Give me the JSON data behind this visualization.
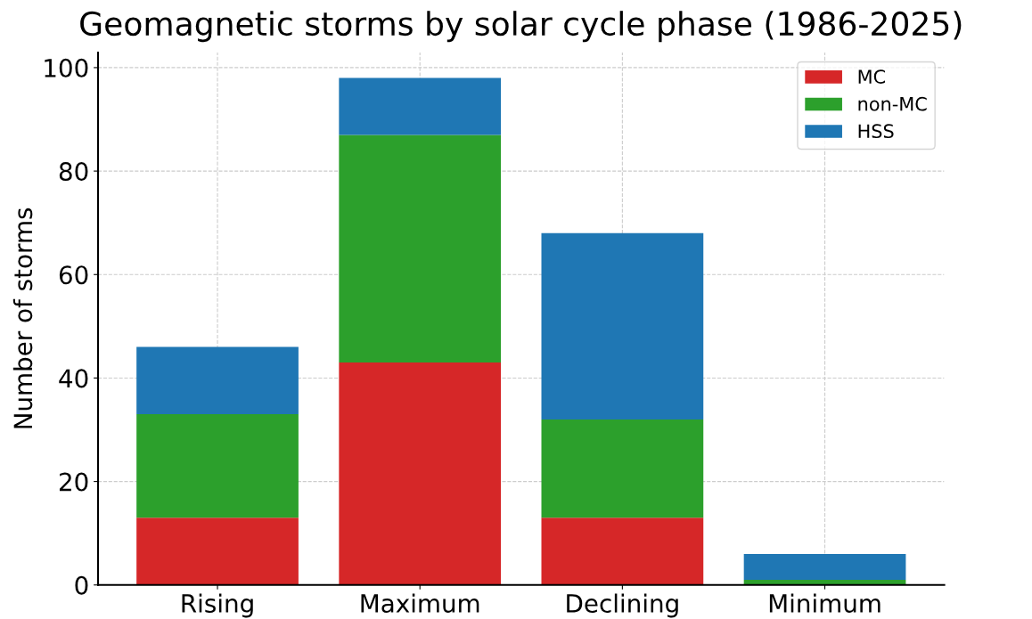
{
  "chart_data": {
    "type": "bar",
    "title": "Geomagnetic storms by solar cycle phase (1986-2025)",
    "ylabel": "Number of storms",
    "categories": [
      "Rising",
      "Maximum",
      "Declining",
      "Minimum"
    ],
    "stacked": true,
    "series": [
      {
        "name": "MC",
        "color": "#d62728",
        "values": [
          13,
          43,
          13,
          0
        ]
      },
      {
        "name": "non-MC",
        "color": "#2ca02c",
        "values": [
          20,
          44,
          19,
          1
        ]
      },
      {
        "name": "HSS",
        "color": "#1f77b4",
        "values": [
          13,
          11,
          36,
          5
        ]
      }
    ],
    "ylim": [
      0,
      102.9
    ],
    "yticks": [
      0,
      20,
      40,
      60,
      80,
      100
    ],
    "grid": true,
    "legend": "top right"
  }
}
